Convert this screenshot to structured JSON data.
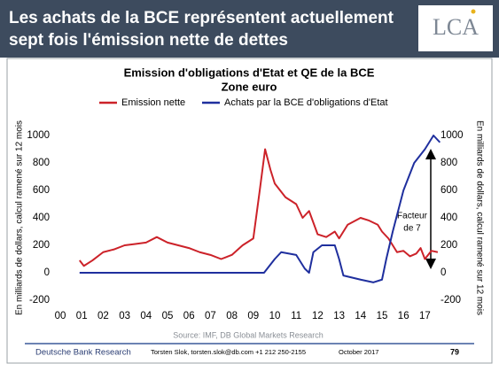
{
  "header": {
    "title": [
      "Les achats de la BCE représentent actuellement",
      "sept fois l'émission nette de dettes"
    ],
    "logo": "LCA"
  },
  "chart_data": {
    "type": "line",
    "title": [
      "Emission d'obligations d'Etat et QE de la BCE",
      "Zone euro"
    ],
    "y_label": "En milliards de dollars, calcul ramené sur 12 mois",
    "y2_label": "En milliards de dollars, calcul ramené sur 12 mois",
    "xlim": [
      2000,
      2018
    ],
    "xticks": [
      {
        "value": 2000,
        "label": "00"
      },
      {
        "value": 2001,
        "label": "01"
      },
      {
        "value": 2002,
        "label": "02"
      },
      {
        "value": 2003,
        "label": "03"
      },
      {
        "value": 2004,
        "label": "04"
      },
      {
        "value": 2005,
        "label": "05"
      },
      {
        "value": 2006,
        "label": "06"
      },
      {
        "value": 2007,
        "label": "07"
      },
      {
        "value": 2008,
        "label": "08"
      },
      {
        "value": 2009,
        "label": "09"
      },
      {
        "value": 2010,
        "label": "10"
      },
      {
        "value": 2011,
        "label": "11"
      },
      {
        "value": 2012,
        "label": "12"
      },
      {
        "value": 2013,
        "label": "13"
      },
      {
        "value": 2014,
        "label": "14"
      },
      {
        "value": 2015,
        "label": "15"
      },
      {
        "value": 2016,
        "label": "16"
      },
      {
        "value": 2017,
        "label": "17"
      }
    ],
    "ylim": [
      -200,
      1000
    ],
    "yticks": [
      -200,
      0,
      200,
      400,
      600,
      800,
      1000
    ],
    "y2lim": [
      -200,
      1000
    ],
    "y2ticks": [
      -200,
      0,
      200,
      400,
      600,
      800,
      1000
    ],
    "series": [
      {
        "name": "Emission nette",
        "color": "#cc2229",
        "x": [
          2000.9,
          2001.1,
          2001.5,
          2002,
          2002.5,
          2003,
          2003.5,
          2004,
          2004.5,
          2005,
          2005.5,
          2006,
          2006.5,
          2007,
          2007.5,
          2008,
          2008.5,
          2009,
          2009.3,
          2009.55,
          2009.8,
          2010,
          2010.5,
          2011,
          2011.3,
          2011.6,
          2012,
          2012.4,
          2012.8,
          2013,
          2013.4,
          2014,
          2014.4,
          2014.8,
          2015,
          2015.3,
          2015.7,
          2016,
          2016.3,
          2016.6,
          2016.8,
          2017,
          2017.3,
          2017.6
        ],
        "values": [
          90,
          50,
          90,
          150,
          170,
          200,
          210,
          220,
          260,
          220,
          200,
          180,
          150,
          130,
          100,
          130,
          200,
          250,
          600,
          900,
          750,
          650,
          550,
          500,
          400,
          450,
          280,
          260,
          300,
          250,
          350,
          400,
          380,
          350,
          300,
          250,
          150,
          160,
          120,
          140,
          180,
          100,
          160,
          150
        ]
      },
      {
        "name": "Achats par la BCE d'obligations d'Etat",
        "color": "#1f2f9e",
        "axis": "y2",
        "x": [
          2000.9,
          2009.5,
          2010,
          2010.3,
          2011,
          2011.4,
          2011.6,
          2011.8,
          2012.2,
          2012.8,
          2013,
          2013.2,
          2014,
          2014.6,
          2015,
          2015.2,
          2015.5,
          2016,
          2016.5,
          2017,
          2017.4,
          2017.7
        ],
        "values": [
          0,
          0,
          100,
          150,
          130,
          30,
          0,
          150,
          200,
          200,
          100,
          -20,
          -50,
          -70,
          -50,
          100,
          300,
          600,
          800,
          900,
          1000,
          950
        ]
      }
    ],
    "annotation": [
      "Facteur",
      "de 7"
    ],
    "source": "Source: IMF, DB Global Markets Research"
  },
  "footer": {
    "left": "Deutsche Bank Research",
    "contact": "Torsten Slok, torsten.slok@db.com +1 212 250-2155",
    "date": "October 2017",
    "page": "79"
  }
}
